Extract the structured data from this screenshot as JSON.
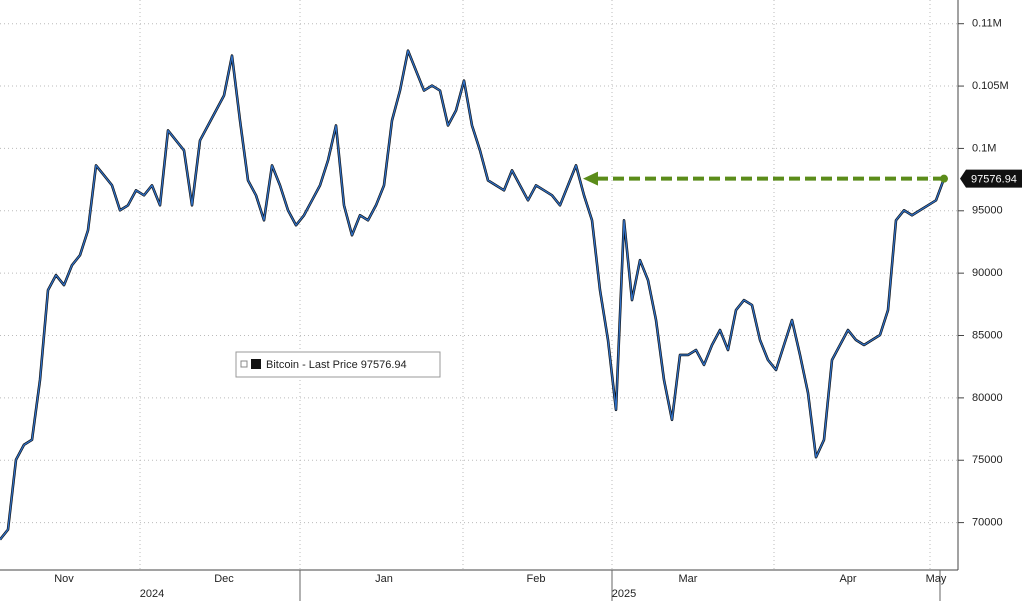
{
  "chart_data": {
    "type": "line",
    "categories": [
      null,
      null,
      null,
      null,
      null,
      null,
      null,
      null,
      "Nov",
      null,
      null,
      null,
      null,
      null,
      null,
      null,
      null,
      null,
      null,
      null,
      null,
      null,
      null,
      null,
      null,
      null,
      null,
      null,
      "Dec",
      null,
      null,
      null,
      null,
      null,
      null,
      null,
      null,
      null,
      null,
      null,
      null,
      null,
      null,
      null,
      null,
      null,
      null,
      null,
      "Jan",
      null,
      null,
      null,
      null,
      null,
      null,
      null,
      null,
      null,
      null,
      null,
      null,
      null,
      null,
      null,
      null,
      null,
      null,
      "Feb",
      null,
      null,
      null,
      null,
      null,
      null,
      null,
      null,
      null,
      null,
      null,
      null,
      null,
      null,
      null,
      null,
      null,
      null,
      "Mar",
      null,
      null,
      null,
      null,
      null,
      null,
      null,
      null,
      null,
      null,
      null,
      null,
      null,
      null,
      null,
      null,
      null,
      null,
      null,
      "Apr",
      null,
      null,
      null,
      null,
      null,
      null,
      null,
      null,
      null,
      null,
      "May",
      null
    ],
    "year_labels": [
      null,
      null,
      null,
      null,
      null,
      null,
      null,
      null,
      null,
      null,
      null,
      null,
      null,
      null,
      null,
      null,
      null,
      null,
      null,
      "2024",
      null,
      null,
      null,
      null,
      null,
      null,
      null,
      null,
      null,
      null,
      null,
      null,
      null,
      null,
      null,
      null,
      null,
      null,
      null,
      null,
      null,
      null,
      null,
      null,
      null,
      null,
      null,
      null,
      null,
      null,
      null,
      null,
      null,
      null,
      null,
      null,
      null,
      null,
      null,
      null,
      null,
      null,
      null,
      null,
      null,
      null,
      null,
      null,
      null,
      null,
      null,
      null,
      null,
      null,
      null,
      null,
      null,
      null,
      "2025",
      null,
      null,
      null,
      null,
      null,
      null,
      null,
      null,
      null,
      null,
      null,
      null,
      null,
      null,
      null,
      null,
      null,
      null,
      null,
      null,
      null,
      null,
      null,
      null,
      null,
      null,
      null,
      null,
      null,
      null,
      null,
      null,
      null,
      null,
      null,
      null,
      null,
      null,
      null,
      null
    ],
    "series": [
      {
        "name": "Bitcoin - Last Price",
        "color": "#2f6fc4",
        "values": [
          68640,
          69440,
          75040,
          76240,
          76640,
          81440,
          88640,
          89840,
          89040,
          90640,
          91440,
          93440,
          98640,
          97840,
          97040,
          95040,
          95440,
          96640,
          96240,
          97040,
          95440,
          101440,
          100640,
          99840,
          95440,
          100640,
          101840,
          103040,
          104240,
          107440,
          102240,
          97440,
          96240,
          94240,
          98640,
          97040,
          95040,
          93840,
          94640,
          95840,
          97040,
          99040,
          101840,
          95440,
          93040,
          94640,
          94240,
          95440,
          97040,
          102240,
          104640,
          107840,
          106240,
          104640,
          105040,
          104640,
          101840,
          103040,
          105440,
          101840,
          99840,
          97440,
          97040,
          96640,
          98240,
          97040,
          95840,
          97040,
          96640,
          96240,
          95440,
          97040,
          98640,
          96240,
          94240,
          88640,
          84640,
          79040,
          94240,
          87840,
          91040,
          89440,
          86240,
          81440,
          78240,
          83440,
          83440,
          83840,
          82640,
          84240,
          85440,
          83840,
          87040,
          87840,
          87440,
          84640,
          83040,
          82240,
          84240,
          86240,
          83440,
          80400,
          75240,
          76640,
          83040,
          84240,
          85440,
          84640,
          84240,
          84640,
          85040,
          87040,
          94240,
          95040,
          94640,
          95040,
          95440,
          95840,
          97576.94
        ]
      }
    ],
    "ylim": [
      66200,
      111900
    ],
    "yticks": [
      70000,
      75000,
      80000,
      85000,
      90000,
      95000,
      {
        "value": 100000,
        "label": "0.1M"
      },
      {
        "value": 105000,
        "label": "0.105M"
      },
      {
        "value": 110000,
        "label": "0.11M"
      }
    ],
    "grid": true,
    "legend": "center-left",
    "annotation_color": "#5b8c1a"
  }
}
